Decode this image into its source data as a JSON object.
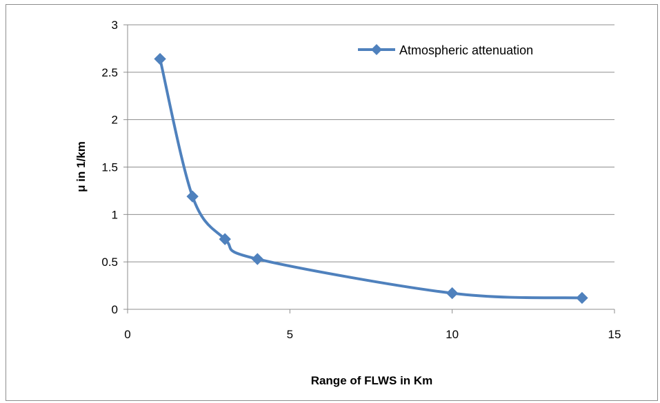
{
  "chart_data": {
    "type": "line",
    "title": "",
    "xlabel": "Range of FLWS in Km",
    "ylabel": "μ in 1/km",
    "xlim": [
      0,
      15
    ],
    "ylim": [
      0,
      3
    ],
    "x_ticks": [
      "0",
      "5",
      "10",
      "15"
    ],
    "y_ticks": [
      "0",
      "0.5",
      "1",
      "1.5",
      "2",
      "2.5",
      "3"
    ],
    "grid": "horizontal",
    "legend": "top-right",
    "smooth": true,
    "marker": "diamond",
    "series": [
      {
        "name": "Atmospheric attenuation",
        "color": "#4F81BD",
        "x": [
          1,
          2,
          3,
          4,
          10,
          14
        ],
        "y": [
          2.64,
          1.19,
          0.74,
          0.53,
          0.17,
          0.12
        ]
      }
    ]
  }
}
